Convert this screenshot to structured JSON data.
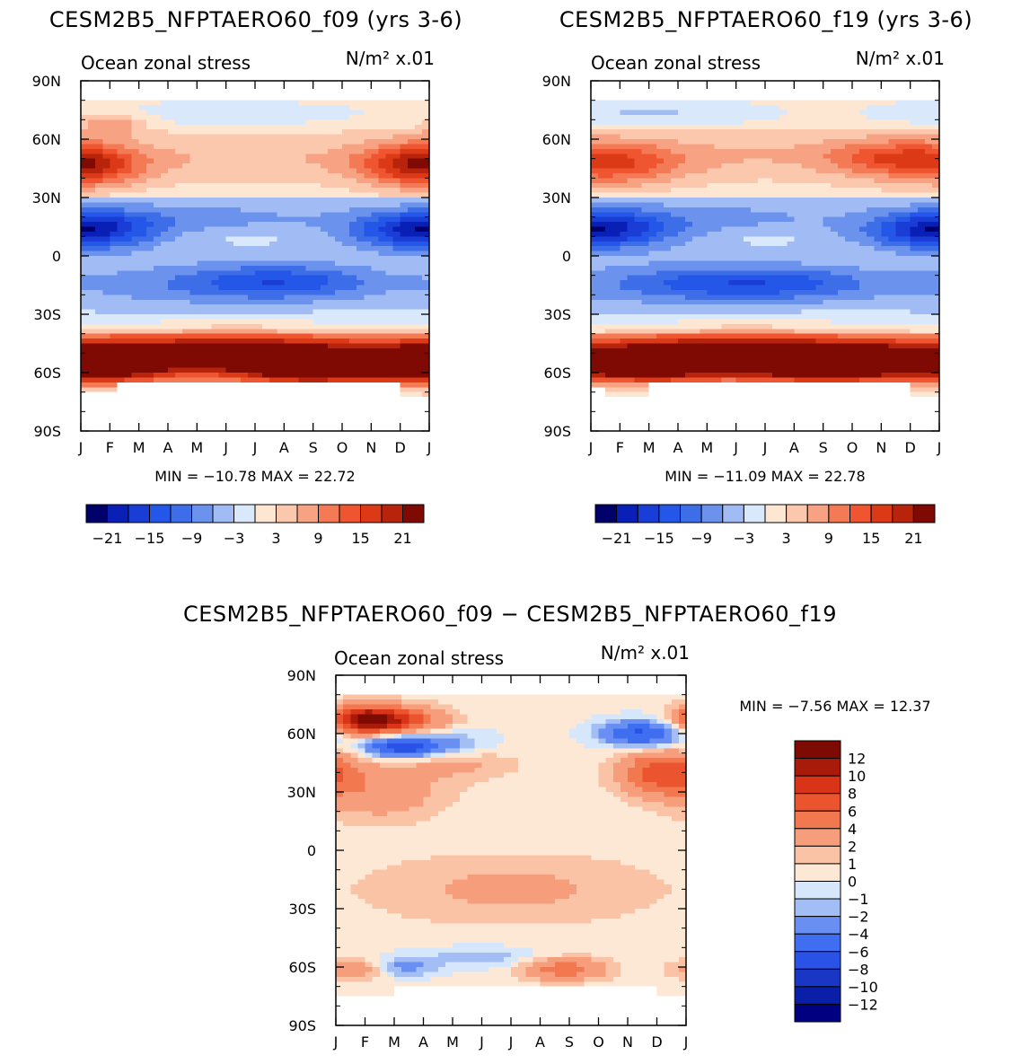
{
  "chart_data": [
    {
      "type": "heatmap",
      "title": "CESM2B5_NFPTAERO60_f09 (yrs 3-6)",
      "left_label": "Ocean zonal stress",
      "right_label": "N/m² x.01",
      "x_ticks": [
        "J",
        "F",
        "M",
        "A",
        "M",
        "J",
        "J",
        "A",
        "S",
        "O",
        "N",
        "D",
        "J"
      ],
      "y_ticks": [
        "90N",
        "60N",
        "30N",
        "0",
        "30S",
        "60S",
        "90S"
      ],
      "stats": "MIN = −10.78 MAX =  22.72",
      "min": -10.78,
      "max": 22.72,
      "colorbar_labels": [
        "−21",
        "−15",
        "−9",
        "−3",
        "3",
        "9",
        "15",
        "21"
      ],
      "features": [
        {
          "lat": -57,
          "month": 8.0,
          "value": 22,
          "lat_sigma": 6,
          "month_sigma": 1.6
        },
        {
          "lat": -55,
          "month": 0.9,
          "value": 18,
          "lat_sigma": 7,
          "month_sigma": 1.6
        },
        {
          "lat": -55,
          "month": 11.2,
          "value": 17,
          "lat_sigma": 7,
          "month_sigma": 1.5
        },
        {
          "lat": -52,
          "month": 5.0,
          "value": 17,
          "lat_sigma": 8,
          "month_sigma": 3.0
        },
        {
          "lat": -48,
          "month": 6.0,
          "value": 9,
          "lat_sigma": 9,
          "month_sigma": 6.0
        },
        {
          "lat": 47,
          "month": 0.3,
          "value": 10,
          "lat_sigma": 8,
          "month_sigma": 1.4
        },
        {
          "lat": 47,
          "month": 11.4,
          "value": 10,
          "lat_sigma": 8,
          "month_sigma": 1.4
        },
        {
          "lat": 50,
          "month": 6.0,
          "value": 4,
          "lat_sigma": 8,
          "month_sigma": 4.5
        },
        {
          "lat": 68,
          "month": 1.0,
          "value": 8,
          "lat_sigma": 4,
          "month_sigma": 0.8
        },
        {
          "lat": 14,
          "month": 0.6,
          "value": -9,
          "lat_sigma": 7,
          "month_sigma": 1.6
        },
        {
          "lat": 13,
          "month": 11.3,
          "value": -10,
          "lat_sigma": 7,
          "month_sigma": 1.6
        },
        {
          "lat": 18,
          "month": 4.5,
          "value": -4,
          "lat_sigma": 8,
          "month_sigma": 3.5
        },
        {
          "lat": -13,
          "month": 7.0,
          "value": -8,
          "lat_sigma": 6,
          "month_sigma": 2.2
        },
        {
          "lat": -15,
          "month": 4.5,
          "value": -5,
          "lat_sigma": 8,
          "month_sigma": 4.0
        },
        {
          "lat": 10,
          "month": 5.5,
          "value": 2.5,
          "lat_sigma": 4,
          "month_sigma": 2.0
        },
        {
          "lat": 73,
          "month": 5.0,
          "value": -2,
          "lat_sigma": 4,
          "month_sigma": 3.0
        }
      ]
    },
    {
      "type": "heatmap",
      "title": "CESM2B5_NFPTAERO60_f19 (yrs 3-6)",
      "left_label": "Ocean zonal stress",
      "right_label": "N/m² x.01",
      "x_ticks": [
        "J",
        "F",
        "M",
        "A",
        "M",
        "J",
        "J",
        "A",
        "S",
        "O",
        "N",
        "D",
        "J"
      ],
      "y_ticks": [
        "90N",
        "60N",
        "30N",
        "0",
        "30S",
        "60S",
        "90S"
      ],
      "stats": "MIN = −11.09 MAX =  22.78",
      "min": -11.09,
      "max": 22.78,
      "colorbar_labels": [
        "−21",
        "−15",
        "−9",
        "−3",
        "3",
        "9",
        "15",
        "21"
      ],
      "features": [
        {
          "lat": -56,
          "month": 8.0,
          "value": 21,
          "lat_sigma": 6,
          "month_sigma": 1.8
        },
        {
          "lat": -56,
          "month": 2.0,
          "value": 20,
          "lat_sigma": 6,
          "month_sigma": 1.6
        },
        {
          "lat": -54,
          "month": 11.0,
          "value": 16,
          "lat_sigma": 7,
          "month_sigma": 1.6
        },
        {
          "lat": -52,
          "month": 5.0,
          "value": 17,
          "lat_sigma": 8,
          "month_sigma": 3.0
        },
        {
          "lat": -48,
          "month": 6.0,
          "value": 9,
          "lat_sigma": 9,
          "month_sigma": 6.0
        },
        {
          "lat": 47,
          "month": 1.0,
          "value": 10,
          "lat_sigma": 8,
          "month_sigma": 1.6
        },
        {
          "lat": 50,
          "month": 10.4,
          "value": 10,
          "lat_sigma": 7,
          "month_sigma": 1.6
        },
        {
          "lat": 52,
          "month": 5.5,
          "value": 4,
          "lat_sigma": 8,
          "month_sigma": 4.5
        },
        {
          "lat": 14,
          "month": 0.8,
          "value": -9,
          "lat_sigma": 7,
          "month_sigma": 1.6
        },
        {
          "lat": 13,
          "month": 11.4,
          "value": -10,
          "lat_sigma": 7,
          "month_sigma": 1.5
        },
        {
          "lat": 18,
          "month": 4.5,
          "value": -4,
          "lat_sigma": 8,
          "month_sigma": 3.5
        },
        {
          "lat": -14,
          "month": 6.0,
          "value": -8,
          "lat_sigma": 6,
          "month_sigma": 3.0
        },
        {
          "lat": -15,
          "month": 3.5,
          "value": -5,
          "lat_sigma": 8,
          "month_sigma": 4.0
        },
        {
          "lat": 10,
          "month": 5.8,
          "value": 2.5,
          "lat_sigma": 4,
          "month_sigma": 1.5
        },
        {
          "lat": 73,
          "month": 2.0,
          "value": -4,
          "lat_sigma": 4,
          "month_sigma": 2.5
        }
      ]
    },
    {
      "type": "heatmap",
      "title": "CESM2B5_NFPTAERO60_f09 − CESM2B5_NFPTAERO60_f19",
      "left_label": "Ocean zonal stress",
      "right_label": "N/m² x.01",
      "x_ticks": [
        "J",
        "F",
        "M",
        "A",
        "M",
        "J",
        "J",
        "A",
        "S",
        "O",
        "N",
        "D",
        "J"
      ],
      "y_ticks": [
        "90N",
        "60N",
        "30N",
        "0",
        "30S",
        "60S",
        "90S"
      ],
      "stats": "MIN =  −7.56 MAX =  12.37",
      "min": -7.56,
      "max": 12.37,
      "colorbar_labels": [
        "12",
        "10",
        "8",
        "6",
        "4",
        "2",
        "1",
        "0",
        "−1",
        "−2",
        "−4",
        "−6",
        "−8",
        "−10",
        "−12"
      ],
      "features": [
        {
          "lat": 67,
          "month": 1.0,
          "value": 12,
          "lat_sigma": 5,
          "month_sigma": 0.9
        },
        {
          "lat": 67,
          "month": 2.5,
          "value": 5,
          "lat_sigma": 5,
          "month_sigma": 1.0
        },
        {
          "lat": 53,
          "month": 2.2,
          "value": -7,
          "lat_sigma": 4,
          "month_sigma": 0.9
        },
        {
          "lat": 55,
          "month": 3.5,
          "value": -3,
          "lat_sigma": 5,
          "month_sigma": 1.3
        },
        {
          "lat": 60,
          "month": 10.5,
          "value": -7,
          "lat_sigma": 5,
          "month_sigma": 1.0
        },
        {
          "lat": 40,
          "month": 11.2,
          "value": 7,
          "lat_sigma": 8,
          "month_sigma": 1.0
        },
        {
          "lat": 30,
          "month": 1.5,
          "value": 3,
          "lat_sigma": 10,
          "month_sigma": 1.5
        },
        {
          "lat": 45,
          "month": 4.0,
          "value": 2,
          "lat_sigma": 6,
          "month_sigma": 1.5
        },
        {
          "lat": -20,
          "month": 6.0,
          "value": 2,
          "lat_sigma": 12,
          "month_sigma": 3.5
        },
        {
          "lat": -61,
          "month": 7.8,
          "value": 5,
          "lat_sigma": 4,
          "month_sigma": 1.0
        },
        {
          "lat": -61,
          "month": 0.7,
          "value": 3,
          "lat_sigma": 4,
          "month_sigma": 0.8
        },
        {
          "lat": -60,
          "month": 2.3,
          "value": -3,
          "lat_sigma": 4,
          "month_sigma": 0.8
        },
        {
          "lat": -55,
          "month": 5.0,
          "value": -2,
          "lat_sigma": 4,
          "month_sigma": 1.5
        }
      ]
    }
  ]
}
